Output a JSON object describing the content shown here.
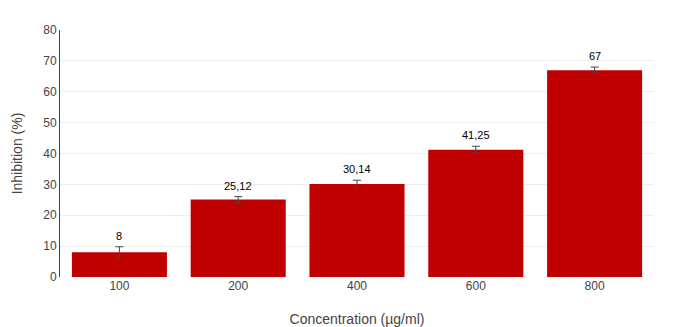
{
  "chart_data": {
    "type": "bar",
    "categories": [
      "100",
      "200",
      "400",
      "600",
      "800"
    ],
    "values": [
      8,
      25.12,
      30.14,
      41.25,
      67
    ],
    "errors": [
      1.8,
      0.9,
      1.2,
      1.1,
      1.0
    ],
    "value_labels": [
      "8",
      "25,12",
      "30,14",
      "41,25",
      "67"
    ],
    "data_labels": true,
    "color": "#c00000",
    "xlabel": "Concentration (µg/ml)",
    "ylabel": "Inhibition (%)",
    "ylim": [
      0,
      80
    ],
    "yticks": [
      0,
      10,
      20,
      30,
      40,
      50,
      60,
      70,
      80
    ],
    "grid": true
  }
}
